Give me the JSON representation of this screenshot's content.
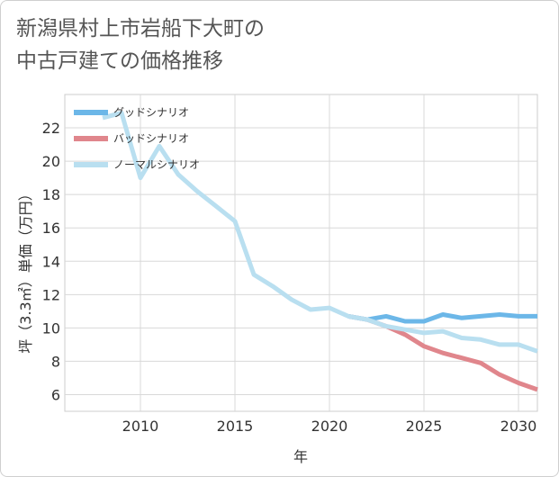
{
  "title_lines": [
    "新潟県村上市岩船下大町の",
    "中古戸建ての価格推移"
  ],
  "chart_data": {
    "type": "line",
    "title": "新潟県村上市岩船下大町の中古戸建ての価格推移",
    "xlabel": "年",
    "ylabel": "坪（3.3㎡）単価（万円）",
    "xlim": [
      2006,
      2031
    ],
    "ylim": [
      5,
      24
    ],
    "xticks": [
      2010,
      2015,
      2020,
      2025,
      2030
    ],
    "yticks": [
      6,
      8,
      10,
      12,
      14,
      16,
      18,
      20,
      22
    ],
    "grid": true,
    "legend_position": "top-left",
    "series": [
      {
        "name": "グッドシナリオ",
        "color": "#6cb7e8",
        "x": [
          2021,
          2022,
          2023,
          2024,
          2025,
          2026,
          2027,
          2028,
          2029,
          2030,
          2031
        ],
        "y": [
          10.7,
          10.5,
          10.7,
          10.4,
          10.4,
          10.8,
          10.6,
          10.7,
          10.8,
          10.7,
          10.7
        ]
      },
      {
        "name": "バッドシナリオ",
        "color": "#e0868c",
        "x": [
          2021,
          2022,
          2023,
          2024,
          2025,
          2026,
          2027,
          2028,
          2029,
          2030,
          2031
        ],
        "y": [
          10.7,
          10.5,
          10.1,
          9.6,
          8.9,
          8.5,
          8.2,
          7.9,
          7.2,
          6.7,
          6.3
        ]
      },
      {
        "name": "ノーマルシナリオ",
        "color": "#b9dff0",
        "x": [
          2008,
          2009,
          2010,
          2011,
          2012,
          2013,
          2014,
          2015,
          2016,
          2017,
          2018,
          2019,
          2020,
          2021,
          2022,
          2023,
          2024,
          2025,
          2026,
          2027,
          2028,
          2029,
          2030,
          2031
        ],
        "y": [
          22.6,
          22.9,
          19.0,
          20.9,
          19.2,
          18.2,
          17.3,
          16.4,
          13.2,
          12.5,
          11.7,
          11.1,
          11.2,
          10.7,
          10.5,
          10.1,
          9.9,
          9.7,
          9.8,
          9.4,
          9.3,
          9.0,
          9.0,
          8.6
        ]
      }
    ]
  }
}
